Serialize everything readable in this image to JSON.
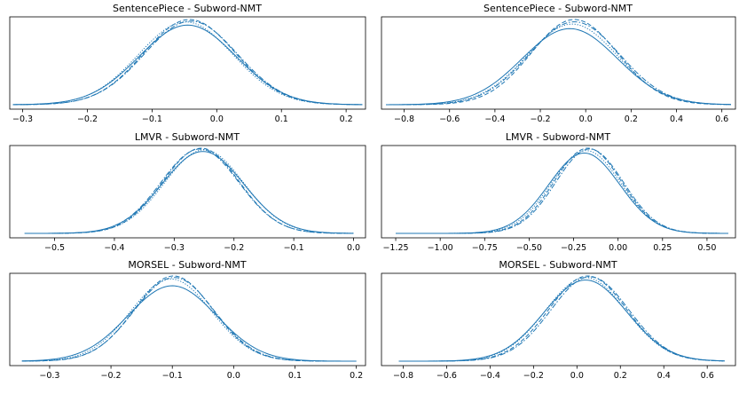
{
  "colors": {
    "curve": "#1f77b4",
    "axes": "#000000",
    "background": "#ffffff"
  },
  "chart_data": [
    {
      "type": "line",
      "title": "SentencePiece - Subword-NMT",
      "xlabel": "",
      "ylabel": "",
      "xlim": [
        -0.32,
        0.23
      ],
      "ticks": [
        -0.3,
        -0.2,
        -0.1,
        0.0,
        0.1,
        0.2
      ],
      "tick_labels": [
        "−0.3",
        "−0.2",
        "−0.1",
        "0.0",
        "0.1",
        "0.2"
      ],
      "data_range": [
        -0.315,
        0.225
      ],
      "series": [
        {
          "style": "solid",
          "mu": -0.045,
          "sigma": 0.075,
          "peak": 1.0
        },
        {
          "style": "dashed",
          "mu": -0.042,
          "sigma": 0.071,
          "peak": 1.07
        },
        {
          "style": "dotted",
          "mu": -0.048,
          "sigma": 0.073,
          "peak": 1.04
        },
        {
          "style": "dashdot",
          "mu": -0.04,
          "sigma": 0.072,
          "peak": 1.05
        }
      ]
    },
    {
      "type": "line",
      "title": "SentencePiece - Subword-NMT",
      "xlabel": "",
      "ylabel": "",
      "xlim": [
        -0.9,
        0.66
      ],
      "ticks": [
        -0.8,
        -0.6,
        -0.4,
        -0.2,
        0.0,
        0.2,
        0.4,
        0.6
      ],
      "tick_labels": [
        "−0.8",
        "−0.6",
        "−0.4",
        "−0.2",
        "0.0",
        "0.2",
        "0.4",
        "0.6"
      ],
      "data_range": [
        -0.88,
        0.64
      ],
      "series": [
        {
          "style": "solid",
          "mu": -0.07,
          "sigma": 0.21,
          "peak": 1.0
        },
        {
          "style": "dashed",
          "mu": -0.05,
          "sigma": 0.19,
          "peak": 1.12
        },
        {
          "style": "dotted",
          "mu": -0.06,
          "sigma": 0.2,
          "peak": 1.06
        },
        {
          "style": "dashdot",
          "mu": -0.05,
          "sigma": 0.2,
          "peak": 1.09
        }
      ]
    },
    {
      "type": "line",
      "title": "LMVR - Subword-NMT",
      "xlabel": "",
      "ylabel": "",
      "xlim": [
        -0.575,
        0.02
      ],
      "ticks": [
        -0.5,
        -0.4,
        -0.3,
        -0.2,
        -0.1,
        0.0
      ],
      "tick_labels": [
        "−0.5",
        "−0.4",
        "−0.3",
        "−0.2",
        "−0.1",
        "0.0"
      ],
      "data_range": [
        -0.55,
        0.0
      ],
      "series": [
        {
          "style": "solid",
          "mu": -0.252,
          "sigma": 0.068,
          "peak": 1.0
        },
        {
          "style": "dashed",
          "mu": -0.255,
          "sigma": 0.064,
          "peak": 1.04
        },
        {
          "style": "dotted",
          "mu": -0.25,
          "sigma": 0.066,
          "peak": 1.02
        },
        {
          "style": "dashdot",
          "mu": -0.257,
          "sigma": 0.065,
          "peak": 1.03
        }
      ]
    },
    {
      "type": "line",
      "title": "LMVR - Subword-NMT",
      "xlabel": "",
      "ylabel": "",
      "xlim": [
        -1.33,
        0.66
      ],
      "ticks": [
        -1.25,
        -1.0,
        -0.75,
        -0.5,
        -0.25,
        0.0,
        0.25,
        0.5
      ],
      "tick_labels": [
        "−1.25",
        "−1.00",
        "−0.75",
        "−0.50",
        "−0.25",
        "0.00",
        "0.25",
        "0.50"
      ],
      "data_range": [
        -1.25,
        0.62
      ],
      "series": [
        {
          "style": "solid",
          "mu": -0.19,
          "sigma": 0.2,
          "peak": 1.0
        },
        {
          "style": "dashed",
          "mu": -0.17,
          "sigma": 0.19,
          "peak": 1.06
        },
        {
          "style": "dotted",
          "mu": -0.18,
          "sigma": 0.195,
          "peak": 1.03
        },
        {
          "style": "dashdot",
          "mu": -0.16,
          "sigma": 0.19,
          "peak": 1.05
        }
      ]
    },
    {
      "type": "line",
      "title": "MORSEL - Subword-NMT",
      "xlabel": "",
      "ylabel": "",
      "xlim": [
        -0.365,
        0.215
      ],
      "ticks": [
        -0.3,
        -0.2,
        -0.1,
        0.0,
        0.1,
        0.2
      ],
      "tick_labels": [
        "−0.3",
        "−0.2",
        "−0.1",
        "0.0",
        "0.1",
        "0.2"
      ],
      "data_range": [
        -0.345,
        0.2
      ],
      "series": [
        {
          "style": "solid",
          "mu": -0.1,
          "sigma": 0.072,
          "peak": 1.0
        },
        {
          "style": "dashed",
          "mu": -0.098,
          "sigma": 0.064,
          "peak": 1.13
        },
        {
          "style": "dotted",
          "mu": -0.102,
          "sigma": 0.066,
          "peak": 1.09
        },
        {
          "style": "dashdot",
          "mu": -0.097,
          "sigma": 0.065,
          "peak": 1.11
        }
      ]
    },
    {
      "type": "line",
      "title": "MORSEL - Subword-NMT",
      "xlabel": "",
      "ylabel": "",
      "xlim": [
        -0.9,
        0.73
      ],
      "ticks": [
        -0.8,
        -0.6,
        -0.4,
        -0.2,
        0.0,
        0.2,
        0.4,
        0.6
      ],
      "tick_labels": [
        "−0.8",
        "−0.6",
        "−0.4",
        "−0.2",
        "0.0",
        "0.2",
        "0.4",
        "0.6"
      ],
      "data_range": [
        -0.82,
        0.68
      ],
      "series": [
        {
          "style": "solid",
          "mu": 0.04,
          "sigma": 0.19,
          "peak": 1.0
        },
        {
          "style": "dashed",
          "mu": 0.05,
          "sigma": 0.18,
          "peak": 1.05
        },
        {
          "style": "dotted",
          "mu": 0.04,
          "sigma": 0.185,
          "peak": 1.03
        },
        {
          "style": "dashdot",
          "mu": 0.06,
          "sigma": 0.18,
          "peak": 1.04
        }
      ]
    }
  ]
}
